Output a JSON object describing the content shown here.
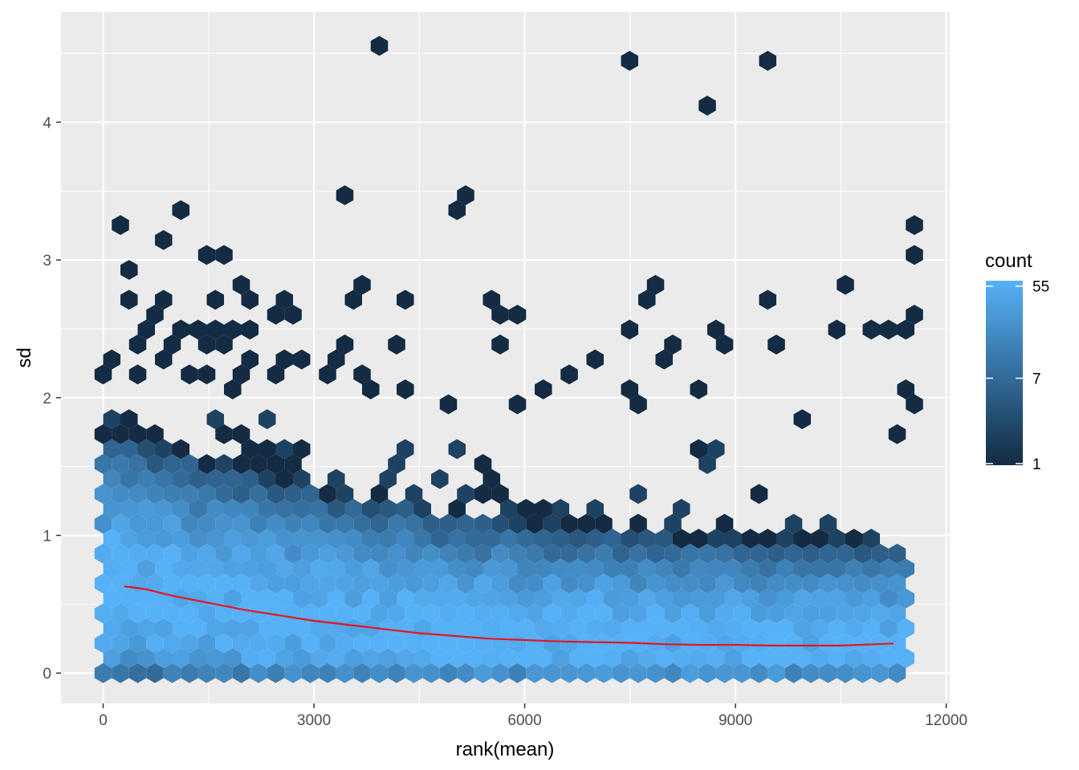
{
  "chart_data": {
    "type": "hexbin",
    "xlabel": "rank(mean)",
    "ylabel": "sd",
    "xlim": [
      -600,
      12050
    ],
    "ylim": [
      -0.22,
      4.8
    ],
    "x_ticks": [
      0,
      3000,
      6000,
      9000,
      12000
    ],
    "y_ticks": [
      0,
      1,
      2,
      3,
      4
    ],
    "x_tick_labels": [
      "0",
      "3000",
      "6000",
      "9000",
      "12000"
    ],
    "y_tick_labels": [
      "0",
      "1",
      "2",
      "3",
      "4"
    ],
    "grid": true,
    "legend": {
      "title": "count",
      "position": "right",
      "scale": "log",
      "breaks": [
        1,
        7,
        55
      ],
      "break_labels": [
        "1",
        "7",
        "55"
      ],
      "low_color": "#132B43",
      "high_color": "#56B1F7"
    },
    "panel_background": "#EBEBEB",
    "grid_color": "#FFFFFF",
    "trend_line": {
      "color": "#E8141C",
      "x": [
        300,
        600,
        1000,
        1500,
        2000,
        2500,
        3000,
        3500,
        4000,
        4500,
        5000,
        5500,
        6000,
        6500,
        7000,
        7500,
        8000,
        8500,
        9000,
        9500,
        10000,
        10500,
        11000,
        11250
      ],
      "y": [
        0.63,
        0.61,
        0.56,
        0.51,
        0.46,
        0.42,
        0.38,
        0.35,
        0.32,
        0.29,
        0.27,
        0.25,
        0.24,
        0.23,
        0.225,
        0.22,
        0.21,
        0.205,
        0.205,
        0.2,
        0.2,
        0.2,
        0.21,
        0.215
      ]
    },
    "outlier_points": [
      {
        "x": 3920,
        "y": 4.57
      },
      {
        "x": 7380,
        "y": 4.41
      },
      {
        "x": 9440,
        "y": 4.41
      },
      {
        "x": 8560,
        "y": 4.1
      },
      {
        "x": 3460,
        "y": 3.47
      },
      {
        "x": 5080,
        "y": 3.47
      },
      {
        "x": 1030,
        "y": 3.39
      },
      {
        "x": 5080,
        "y": 3.31
      },
      {
        "x": 340,
        "y": 3.23
      },
      {
        "x": 11430,
        "y": 3.23
      },
      {
        "x": 920,
        "y": 3.16
      },
      {
        "x": 1500,
        "y": 3.08
      },
      {
        "x": 1730,
        "y": 3.08
      },
      {
        "x": 11540,
        "y": 3.0
      },
      {
        "x": 340,
        "y": 2.92
      },
      {
        "x": 3690,
        "y": 2.84
      },
      {
        "x": 2080,
        "y": 2.84
      },
      {
        "x": 7840,
        "y": 2.84
      },
      {
        "x": 10580,
        "y": 2.84
      },
      {
        "x": 340,
        "y": 2.76
      },
      {
        "x": 1500,
        "y": 2.76
      },
      {
        "x": 2200,
        "y": 2.76
      },
      {
        "x": 2660,
        "y": 2.76
      },
      {
        "x": 4270,
        "y": 2.76
      },
      {
        "x": 5650,
        "y": 2.76
      },
      {
        "x": 9560,
        "y": 2.76
      },
      {
        "x": 920,
        "y": 2.68
      },
      {
        "x": 3460,
        "y": 2.68
      },
      {
        "x": 7840,
        "y": 2.68
      },
      {
        "x": 800,
        "y": 2.6
      },
      {
        "x": 2430,
        "y": 2.6
      },
      {
        "x": 2660,
        "y": 2.6
      },
      {
        "x": 5650,
        "y": 2.6
      },
      {
        "x": 5880,
        "y": 2.6
      },
      {
        "x": 11430,
        "y": 2.6
      },
      {
        "x": 690,
        "y": 2.52
      },
      {
        "x": 1840,
        "y": 2.52
      },
      {
        "x": 2080,
        "y": 2.52
      },
      {
        "x": 8780,
        "y": 2.52
      },
      {
        "x": 10350,
        "y": 2.52
      },
      {
        "x": 11070,
        "y": 2.52
      },
      {
        "x": 11310,
        "y": 2.52
      },
      {
        "x": 1030,
        "y": 2.45
      },
      {
        "x": 1270,
        "y": 2.45
      },
      {
        "x": 1500,
        "y": 2.45
      },
      {
        "x": 7500,
        "y": 2.45
      },
      {
        "x": 10950,
        "y": 2.45
      },
      {
        "x": 450,
        "y": 2.37
      },
      {
        "x": 920,
        "y": 2.37
      },
      {
        "x": 1380,
        "y": 2.37
      },
      {
        "x": 1610,
        "y": 2.37
      },
      {
        "x": 3460,
        "y": 2.37
      },
      {
        "x": 4160,
        "y": 2.37
      },
      {
        "x": 5540,
        "y": 2.37
      },
      {
        "x": 8090,
        "y": 2.37
      },
      {
        "x": 8780,
        "y": 2.37
      },
      {
        "x": 9680,
        "y": 2.37
      },
      {
        "x": 110,
        "y": 2.29
      },
      {
        "x": 800,
        "y": 2.29
      },
      {
        "x": 2200,
        "y": 2.29
      },
      {
        "x": 2660,
        "y": 2.29
      },
      {
        "x": 2890,
        "y": 2.29
      },
      {
        "x": 3340,
        "y": 2.29
      },
      {
        "x": 7030,
        "y": 2.29
      },
      {
        "x": 7960,
        "y": 2.29
      },
      {
        "x": 450,
        "y": 2.21
      },
      {
        "x": 1150,
        "y": 2.21
      },
      {
        "x": 2430,
        "y": 2.21
      },
      {
        "x": 3110,
        "y": 2.21
      },
      {
        "x": 3690,
        "y": 2.21
      },
      {
        "x": 110,
        "y": 2.13
      },
      {
        "x": 570,
        "y": 2.13
      },
      {
        "x": 1500,
        "y": 2.13
      },
      {
        "x": 2080,
        "y": 2.13
      },
      {
        "x": 6560,
        "y": 2.13
      },
      {
        "x": 1840,
        "y": 2.05
      },
      {
        "x": 3920,
        "y": 2.05
      },
      {
        "x": 4380,
        "y": 2.05
      },
      {
        "x": 6200,
        "y": 2.05
      },
      {
        "x": 7380,
        "y": 2.05
      },
      {
        "x": 8560,
        "y": 2.05
      },
      {
        "x": 11320,
        "y": 2.05
      },
      {
        "x": 4850,
        "y": 1.97
      },
      {
        "x": 5880,
        "y": 1.97
      },
      {
        "x": 7500,
        "y": 1.97
      },
      {
        "x": 11430,
        "y": 1.97
      }
    ]
  }
}
